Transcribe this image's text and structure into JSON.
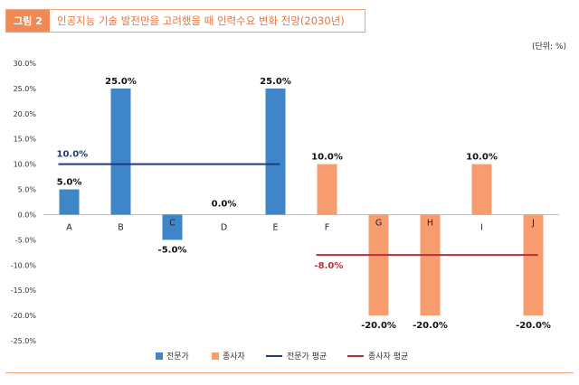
{
  "header": {
    "tag": "그림 2",
    "title": "인공지능 기술 발전만을 고려했을 때 인력수요 변화 전망(2030년)",
    "unit": "(단위: %)"
  },
  "colors": {
    "expert": "#3f86c8",
    "worker": "#f79c6f",
    "expert_avg": "#1f3c7a",
    "worker_avg": "#b5303a",
    "title_accent": "#ee8a55"
  },
  "chart_data": {
    "type": "bar",
    "title": "인공지능 기술 발전만을 고려했을 때 인력수요 변화 전망(2030년)",
    "categories": [
      "A",
      "B",
      "C",
      "D",
      "E",
      "F",
      "G",
      "H",
      "I",
      "J"
    ],
    "series": [
      {
        "name": "전문가",
        "values": [
          5.0,
          25.0,
          -5.0,
          0.0,
          25.0,
          null,
          null,
          null,
          null,
          null
        ]
      },
      {
        "name": "종사자",
        "values": [
          null,
          null,
          null,
          null,
          null,
          10.0,
          -20.0,
          -20.0,
          10.0,
          -20.0
        ]
      }
    ],
    "bar_labels": [
      "5.0%",
      "25.0%",
      "-5.0%",
      "0.0%",
      "25.0%",
      "10.0%",
      "-20.0%",
      "-20.0%",
      "10.0%",
      "-20.0%"
    ],
    "averages": [
      {
        "name": "전문가 평균",
        "value": 10.0,
        "label": "10.0%",
        "from": "A",
        "to": "E"
      },
      {
        "name": "종사자 평균",
        "value": -8.0,
        "label": "-8.0%",
        "from": "F",
        "to": "J"
      }
    ],
    "yticks": [
      30,
      25,
      20,
      15,
      10,
      5,
      0,
      -5,
      -10,
      -15,
      -20,
      -25
    ],
    "ytick_labels": [
      "30.0%",
      "25.0%",
      "20.0%",
      "15.0%",
      "10.0%",
      "5.0%",
      "0.0%",
      "-5.0%",
      "-10.0%",
      "-15.0%",
      "-20.0%",
      "-25.0%"
    ],
    "ylim": [
      -25,
      30
    ],
    "legend": [
      "전문가",
      "종사자",
      "전문가 평균",
      "종사자 평균"
    ],
    "legend_position": "bottom"
  }
}
